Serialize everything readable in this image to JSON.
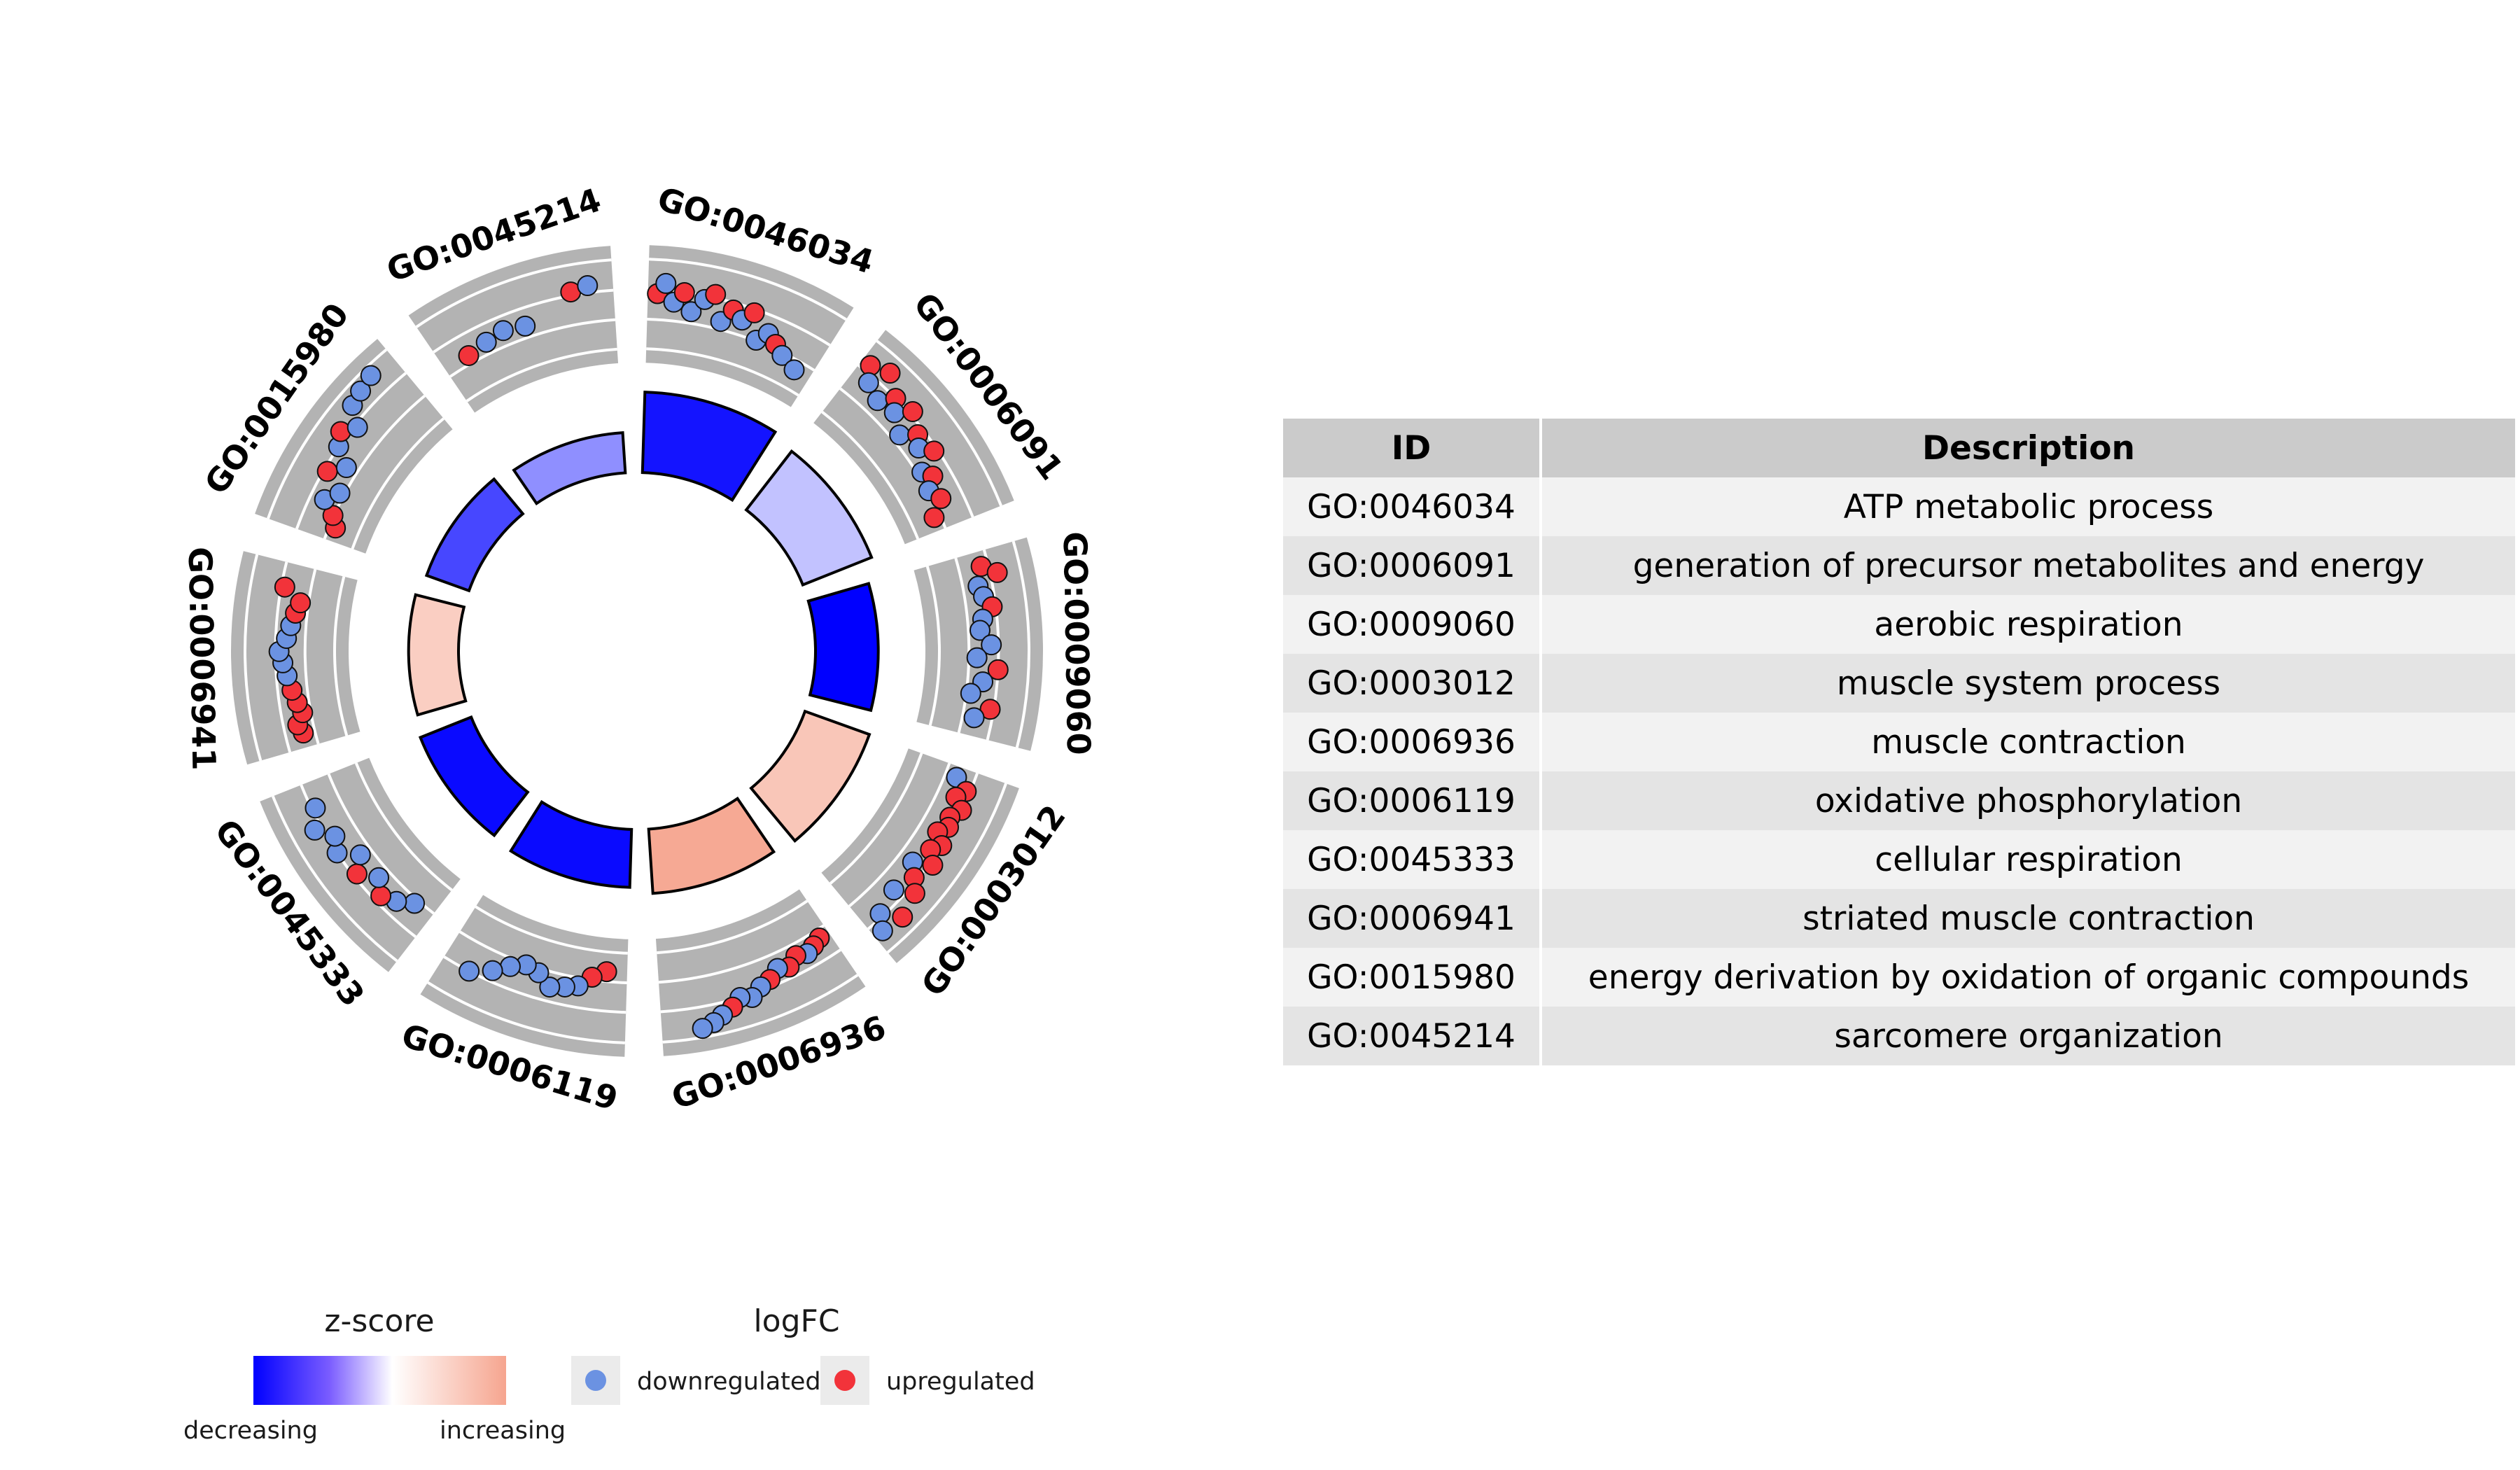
{
  "chart_data": {
    "type": "circular",
    "terms": [
      {
        "id": "GO:0046034",
        "description": "ATP metabolic process",
        "zscore": -4.6,
        "bar_height": 1.0
      },
      {
        "id": "GO:0006091",
        "description": "generation of precursor metabolites and energy",
        "zscore": -1.2,
        "bar_height": 0.92
      },
      {
        "id": "GO:0009060",
        "description": "aerobic respiration",
        "zscore": -5.0,
        "bar_height": 0.78
      },
      {
        "id": "GO:0003012",
        "description": "muscle system process",
        "zscore": 1.4,
        "bar_height": 0.85
      },
      {
        "id": "GO:0006936",
        "description": "muscle contraction",
        "zscore": 2.1,
        "bar_height": 0.8
      },
      {
        "id": "GO:0006119",
        "description": "oxidative phosphorylation",
        "zscore": -4.8,
        "bar_height": 0.72
      },
      {
        "id": "GO:0045333",
        "description": "cellular respiration",
        "zscore": -4.8,
        "bar_height": 0.68
      },
      {
        "id": "GO:0006941",
        "description": "striated muscle contraction",
        "zscore": 1.2,
        "bar_height": 0.62
      },
      {
        "id": "GO:0015980",
        "description": "energy derivation by oxidation of organic compounds",
        "zscore": -3.6,
        "bar_height": 0.56
      },
      {
        "id": "GO:0045214",
        "description": "sarcomere organization",
        "zscore": -2.2,
        "bar_height": 0.5
      }
    ],
    "genes": [
      {
        "term": 0,
        "points": [
          [
            0.05,
            0.62,
            "up"
          ],
          [
            0.09,
            0.74,
            "down"
          ],
          [
            0.14,
            0.54,
            "down"
          ],
          [
            0.19,
            0.66,
            "up"
          ],
          [
            0.24,
            0.46,
            "down"
          ],
          [
            0.3,
            0.62,
            "down"
          ],
          [
            0.35,
            0.7,
            "up"
          ],
          [
            0.41,
            0.42,
            "down"
          ],
          [
            0.46,
            0.58,
            "up"
          ],
          [
            0.52,
            0.5,
            "down"
          ],
          [
            0.57,
            0.62,
            "up"
          ],
          [
            0.63,
            0.34,
            "down"
          ],
          [
            0.68,
            0.46,
            "down"
          ],
          [
            0.74,
            0.38,
            "up"
          ],
          [
            0.8,
            0.3,
            "down"
          ],
          [
            0.9,
            0.22,
            "down"
          ]
        ]
      },
      {
        "term": 1,
        "points": [
          [
            0.05,
            0.74,
            "up"
          ],
          [
            0.1,
            0.58,
            "down"
          ],
          [
            0.15,
            0.82,
            "up"
          ],
          [
            0.2,
            0.5,
            "down"
          ],
          [
            0.26,
            0.66,
            "up"
          ],
          [
            0.31,
            0.54,
            "down"
          ],
          [
            0.37,
            0.7,
            "up"
          ],
          [
            0.42,
            0.42,
            "down"
          ],
          [
            0.48,
            0.58,
            "up"
          ],
          [
            0.54,
            0.5,
            "down"
          ],
          [
            0.6,
            0.62,
            "up"
          ],
          [
            0.66,
            0.38,
            "down"
          ],
          [
            0.71,
            0.46,
            "up"
          ],
          [
            0.77,
            0.34,
            "down"
          ],
          [
            0.84,
            0.42,
            "up"
          ],
          [
            0.92,
            0.26,
            "up"
          ]
        ]
      },
      {
        "term": 2,
        "points": [
          [
            0.08,
            0.58,
            "up"
          ],
          [
            0.13,
            0.74,
            "up"
          ],
          [
            0.18,
            0.5,
            "down"
          ],
          [
            0.24,
            0.54,
            "down"
          ],
          [
            0.3,
            0.62,
            "up"
          ],
          [
            0.36,
            0.5,
            "down"
          ],
          [
            0.42,
            0.46,
            "down"
          ],
          [
            0.5,
            0.58,
            "down"
          ],
          [
            0.57,
            0.42,
            "down"
          ],
          [
            0.63,
            0.66,
            "up"
          ],
          [
            0.7,
            0.5,
            "down"
          ],
          [
            0.77,
            0.38,
            "down"
          ],
          [
            0.84,
            0.62,
            "up"
          ],
          [
            0.9,
            0.46,
            "down"
          ]
        ]
      },
      {
        "term": 3,
        "points": [
          [
            0.06,
            0.46,
            "down"
          ],
          [
            0.11,
            0.62,
            "up"
          ],
          [
            0.16,
            0.54,
            "up"
          ],
          [
            0.21,
            0.66,
            "up"
          ],
          [
            0.27,
            0.58,
            "up"
          ],
          [
            0.32,
            0.62,
            "up"
          ],
          [
            0.37,
            0.54,
            "up"
          ],
          [
            0.42,
            0.66,
            "up"
          ],
          [
            0.47,
            0.58,
            "up"
          ],
          [
            0.53,
            0.7,
            "up"
          ],
          [
            0.58,
            0.5,
            "down"
          ],
          [
            0.64,
            0.62,
            "up"
          ],
          [
            0.7,
            0.74,
            "up"
          ],
          [
            0.76,
            0.54,
            "down"
          ],
          [
            0.83,
            0.82,
            "up"
          ],
          [
            0.9,
            0.62,
            "down"
          ],
          [
            0.95,
            0.78,
            "down"
          ]
        ]
      },
      {
        "term": 4,
        "points": [
          [
            0.06,
            0.42,
            "up"
          ],
          [
            0.11,
            0.46,
            "up"
          ],
          [
            0.16,
            0.5,
            "down"
          ],
          [
            0.22,
            0.46,
            "up"
          ],
          [
            0.28,
            0.54,
            "up"
          ],
          [
            0.34,
            0.5,
            "down"
          ],
          [
            0.4,
            0.58,
            "up"
          ],
          [
            0.46,
            0.62,
            "down"
          ],
          [
            0.52,
            0.7,
            "down"
          ],
          [
            0.58,
            0.66,
            "down"
          ],
          [
            0.63,
            0.74,
            "up"
          ],
          [
            0.69,
            0.8,
            "down"
          ],
          [
            0.74,
            0.86,
            "down"
          ],
          [
            0.8,
            0.9,
            "down"
          ]
        ]
      },
      {
        "term": 5,
        "points": [
          [
            0.12,
            0.22,
            "up"
          ],
          [
            0.2,
            0.3,
            "up"
          ],
          [
            0.27,
            0.42,
            "down"
          ],
          [
            0.34,
            0.46,
            "down"
          ],
          [
            0.42,
            0.5,
            "down"
          ],
          [
            0.5,
            0.38,
            "down"
          ],
          [
            0.58,
            0.34,
            "down"
          ],
          [
            0.66,
            0.42,
            "down"
          ],
          [
            0.74,
            0.54,
            "down"
          ],
          [
            0.85,
            0.66,
            "down"
          ]
        ]
      },
      {
        "term": 6,
        "points": [
          [
            0.12,
            0.38,
            "down"
          ],
          [
            0.2,
            0.5,
            "down"
          ],
          [
            0.28,
            0.58,
            "up"
          ],
          [
            0.36,
            0.46,
            "down"
          ],
          [
            0.45,
            0.62,
            "up"
          ],
          [
            0.52,
            0.46,
            "down"
          ],
          [
            0.6,
            0.66,
            "down"
          ],
          [
            0.68,
            0.58,
            "down"
          ],
          [
            0.76,
            0.74,
            "down"
          ],
          [
            0.86,
            0.62,
            "down"
          ]
        ]
      },
      {
        "term": 7,
        "points": [
          [
            0.08,
            0.46,
            "up"
          ],
          [
            0.13,
            0.5,
            "up"
          ],
          [
            0.19,
            0.42,
            "up"
          ],
          [
            0.25,
            0.46,
            "up"
          ],
          [
            0.32,
            0.5,
            "up"
          ],
          [
            0.4,
            0.54,
            "down"
          ],
          [
            0.47,
            0.58,
            "down"
          ],
          [
            0.53,
            0.62,
            "down"
          ],
          [
            0.6,
            0.54,
            "down"
          ],
          [
            0.67,
            0.5,
            "down"
          ],
          [
            0.74,
            0.46,
            "up"
          ],
          [
            0.8,
            0.42,
            "up"
          ],
          [
            0.87,
            0.62,
            "up"
          ]
        ]
      },
      {
        "term": 8,
        "points": [
          [
            0.08,
            0.26,
            "up"
          ],
          [
            0.14,
            0.34,
            "up"
          ],
          [
            0.2,
            0.5,
            "down"
          ],
          [
            0.27,
            0.38,
            "down"
          ],
          [
            0.34,
            0.62,
            "up"
          ],
          [
            0.41,
            0.46,
            "down"
          ],
          [
            0.48,
            0.66,
            "down"
          ],
          [
            0.55,
            0.74,
            "up"
          ],
          [
            0.62,
            0.62,
            "down"
          ],
          [
            0.69,
            0.82,
            "down"
          ],
          [
            0.77,
            0.86,
            "down"
          ],
          [
            0.86,
            0.9,
            "down"
          ]
        ]
      },
      {
        "term": 9,
        "points": [
          [
            0.15,
            0.42,
            "up"
          ],
          [
            0.27,
            0.46,
            "down"
          ],
          [
            0.38,
            0.5,
            "down"
          ],
          [
            0.5,
            0.46,
            "down"
          ],
          [
            0.78,
            0.7,
            "up"
          ],
          [
            0.87,
            0.74,
            "down"
          ]
        ]
      }
    ],
    "zscore_legend": {
      "title": "z-score",
      "low_label": "decreasing",
      "high_label": "increasing"
    },
    "logfc_legend": {
      "title": "logFC",
      "down_label": "downregulated",
      "up_label": "upregulated"
    },
    "colors": {
      "down": "#6b92e2",
      "up": "#f2333a",
      "track": "#b3b3b3",
      "track_line": "#ffffff",
      "low": "#0000ff",
      "high": "#f6a58f"
    }
  },
  "table": {
    "headers": [
      "ID",
      "Description"
    ],
    "rows": [
      [
        "GO:0046034",
        "ATP metabolic process"
      ],
      [
        "GO:0006091",
        "generation of precursor metabolites and energy"
      ],
      [
        "GO:0009060",
        "aerobic respiration"
      ],
      [
        "GO:0003012",
        "muscle system process"
      ],
      [
        "GO:0006936",
        "muscle contraction"
      ],
      [
        "GO:0006119",
        "oxidative phosphorylation"
      ],
      [
        "GO:0045333",
        "cellular respiration"
      ],
      [
        "GO:0006941",
        "striated muscle contraction"
      ],
      [
        "GO:0015980",
        "energy derivation by oxidation of organic compounds"
      ],
      [
        "GO:0045214",
        "sarcomere organization"
      ]
    ]
  }
}
